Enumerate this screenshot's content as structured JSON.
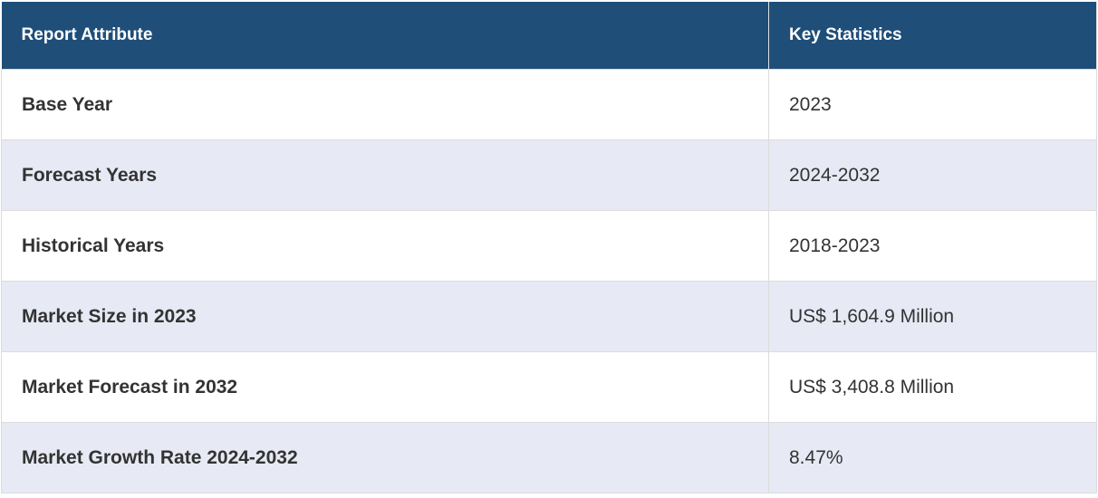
{
  "table": {
    "header": [
      "Report Attribute",
      "Key Statistics"
    ],
    "rows": [
      [
        "Base Year",
        "2023"
      ],
      [
        "Forecast Years",
        "2024-2032"
      ],
      [
        "Historical Years",
        "2018-2023"
      ],
      [
        "Market Size in 2023",
        "US$ 1,604.9 Million"
      ],
      [
        "Market Forecast in 2032",
        "US$ 3,408.8 Million"
      ],
      [
        "Market Growth Rate 2024-2032",
        "8.47%"
      ]
    ]
  }
}
